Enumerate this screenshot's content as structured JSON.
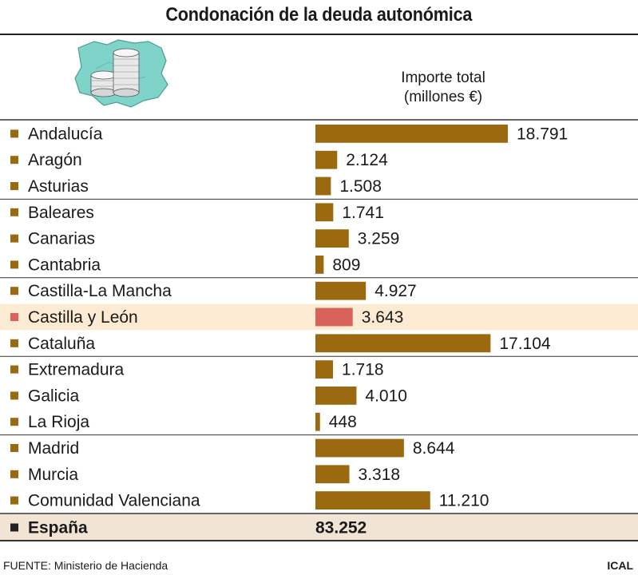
{
  "title": "Condonación de la deuda autonómica",
  "column_header": {
    "line1": "Importe total",
    "line2": "(millones €)"
  },
  "source": "FUENTE: Ministerio de Hacienda",
  "credit": "ICAL",
  "colors": {
    "bar": "#9b6a10",
    "highlight_bar": "#d9625a",
    "highlight_row": "#fcebd2",
    "total_row": "#f2e4d4",
    "marker": "#9b6a10",
    "marker_total": "#222222",
    "divider": "#333333"
  },
  "icon_names": [
    "castilla-leon-map-icon",
    "coin-stack-icon"
  ],
  "chart_data": {
    "type": "bar",
    "orientation": "horizontal",
    "categories": [
      "Andalucía",
      "Aragón",
      "Asturias",
      "Baleares",
      "Canarias",
      "Cantabria",
      "Castilla-La Mancha",
      "Castilla y León",
      "Cataluña",
      "Extremadura",
      "Galicia",
      "La Rioja",
      "Madrid",
      "Murcia",
      "Comunidad Valenciana"
    ],
    "values": [
      18791,
      2124,
      1508,
      1741,
      3259,
      809,
      4927,
      3643,
      17104,
      1718,
      4010,
      448,
      8644,
      3318,
      11210
    ],
    "value_labels": [
      "18.791",
      "2.124",
      "1.508",
      "1.741",
      "3.259",
      "809",
      "4.927",
      "3.643",
      "17.104",
      "1.718",
      "4.010",
      "448",
      "8.644",
      "3.318",
      "11.210"
    ],
    "highlighted_category": "Castilla y León",
    "group_dividers_after": [
      "Asturias",
      "Cantabria",
      "Cataluña",
      "La Rioja"
    ],
    "total": {
      "label": "España",
      "value": 83252,
      "value_label": "83.252"
    },
    "xlim": [
      0,
      18791
    ],
    "grid": false
  }
}
